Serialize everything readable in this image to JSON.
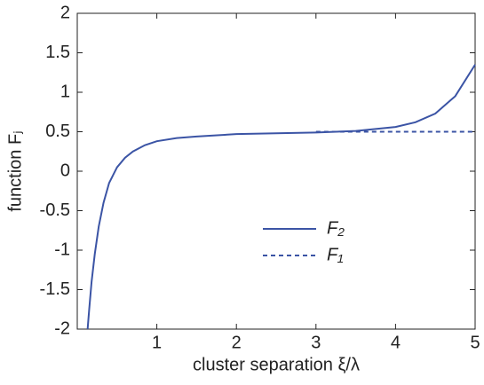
{
  "chart_data": {
    "type": "line",
    "x_label": "cluster separation ξ/λ",
    "y_label": "function Fⱼ",
    "xlim": [
      0,
      5
    ],
    "xticks": [
      1,
      2,
      3,
      4,
      5
    ],
    "ylim": [
      -2,
      2
    ],
    "yticks": [
      2,
      1.5,
      1,
      0.5,
      0,
      -0.5,
      -1,
      -1.5,
      -2
    ],
    "legend": "center-right",
    "series": [
      {
        "name": "F₂",
        "color": "#3b54a5",
        "dash": false,
        "x": [
          0.13,
          0.15,
          0.18,
          0.22,
          0.27,
          0.33,
          0.4,
          0.5,
          0.6,
          0.7,
          0.85,
          1,
          1.25,
          1.5,
          2,
          2.5,
          3,
          3.5,
          4,
          4.25,
          4.5,
          4.75,
          5
        ],
        "values": [
          -2,
          -1.75,
          -1.4,
          -1.05,
          -0.7,
          -0.4,
          -0.15,
          0.05,
          0.17,
          0.25,
          0.33,
          0.38,
          0.42,
          0.44,
          0.47,
          0.48,
          0.49,
          0.51,
          0.56,
          0.62,
          0.73,
          0.95,
          1.35
        ]
      },
      {
        "name": "F₁",
        "color": "#3b54a5",
        "dash": true,
        "x": [
          3,
          5
        ],
        "values": [
          0.5,
          0.5
        ]
      }
    ]
  }
}
